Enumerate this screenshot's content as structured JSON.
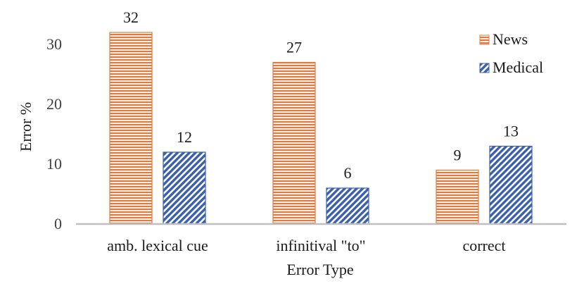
{
  "chart_data": {
    "type": "bar",
    "categories": [
      "amb. lexical cue",
      "infinitival \"to\"",
      "correct"
    ],
    "series": [
      {
        "name": "News",
        "values": [
          32,
          27,
          9
        ],
        "color": "#e07a3f",
        "pattern": "horizontal-stripes"
      },
      {
        "name": "Medical",
        "values": [
          12,
          6,
          13
        ],
        "color": "#3a5fad",
        "pattern": "diagonal-stripes"
      }
    ],
    "xlabel": "Error Type",
    "ylabel": "Error %",
    "ylim": [
      0,
      36
    ],
    "yticks": [
      0,
      10,
      20,
      30
    ],
    "grid": false,
    "legend": "top-right",
    "data_labels": true
  }
}
